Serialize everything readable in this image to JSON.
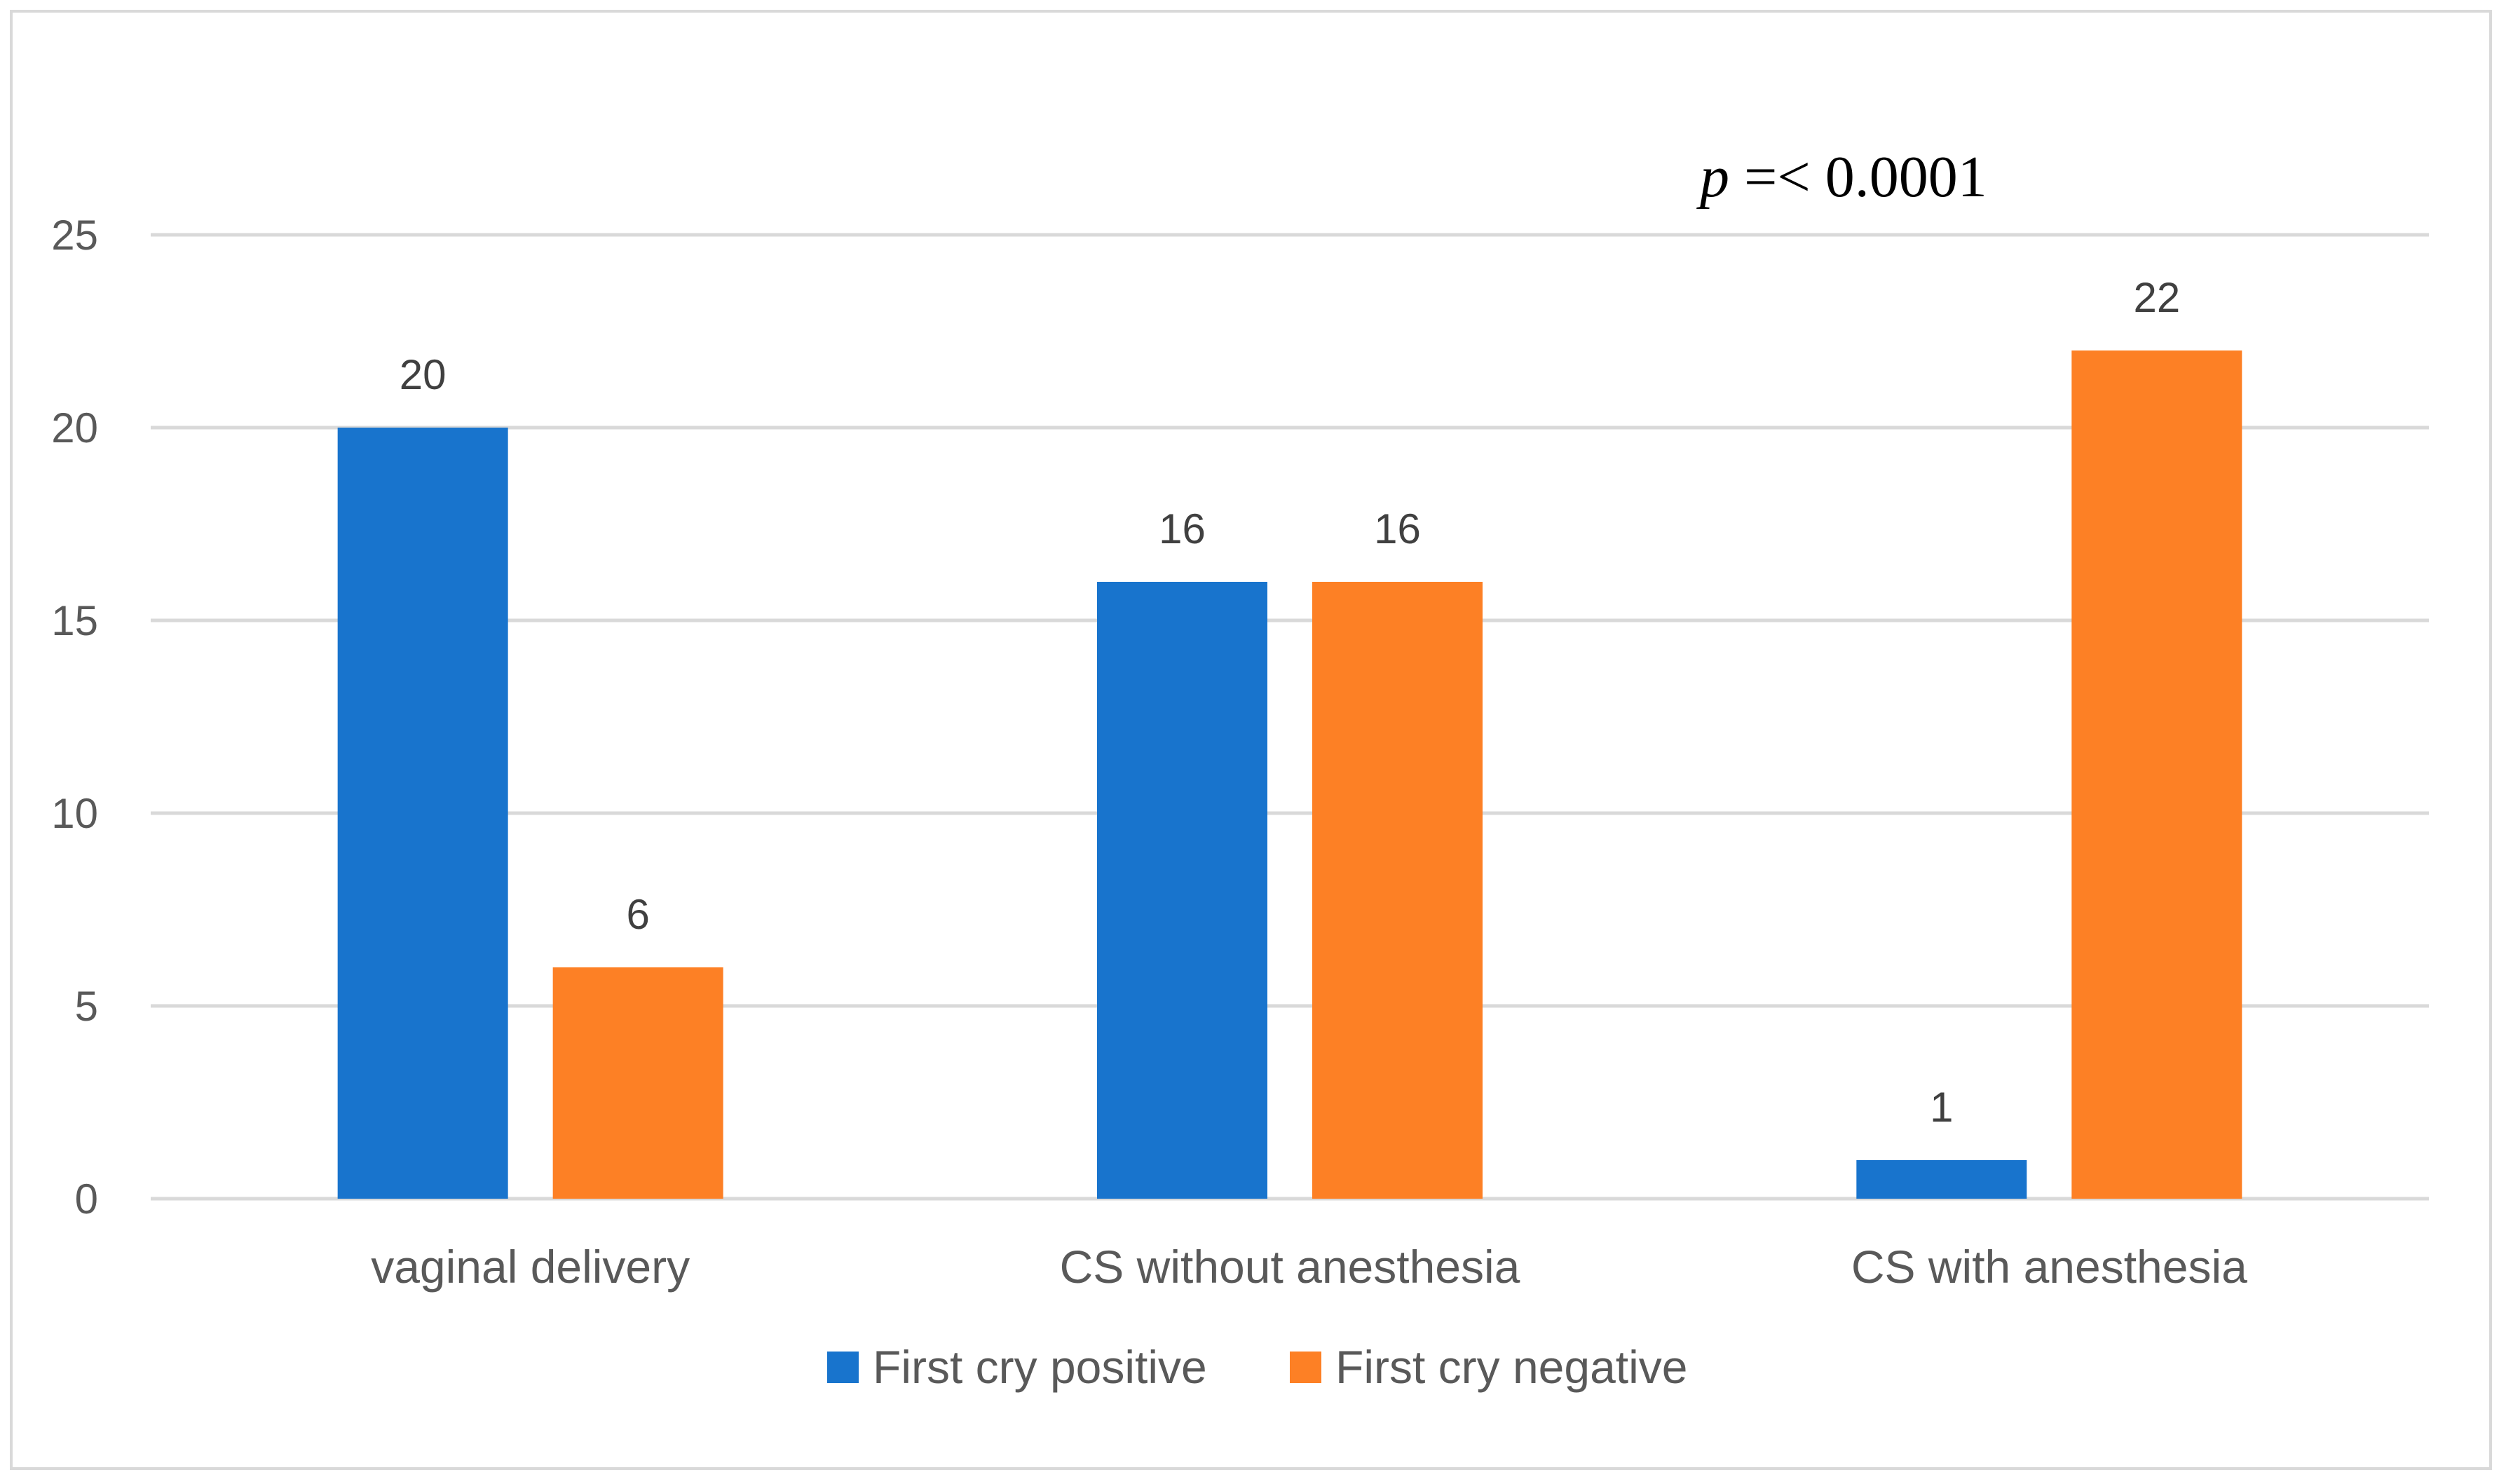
{
  "chart_data": {
    "type": "bar",
    "title": "",
    "xlabel": "",
    "ylabel": "",
    "categories": [
      "vaginal delivery",
      "CS without anesthesia",
      "CS with anesthesia"
    ],
    "series": [
      {
        "name": "First cry positive",
        "color": "#1874cd",
        "values": [
          20,
          16,
          1
        ]
      },
      {
        "name": "First cry negative",
        "color": "#fd8025",
        "values": [
          6,
          16,
          22
        ]
      }
    ],
    "ylim": [
      0,
      25
    ],
    "yticks": [
      0,
      5,
      10,
      15,
      20,
      25
    ],
    "grid": true,
    "legend_position": "bottom",
    "data_labels": true,
    "annotation": {
      "italic": "p",
      "text": " =< 0.0001"
    }
  }
}
